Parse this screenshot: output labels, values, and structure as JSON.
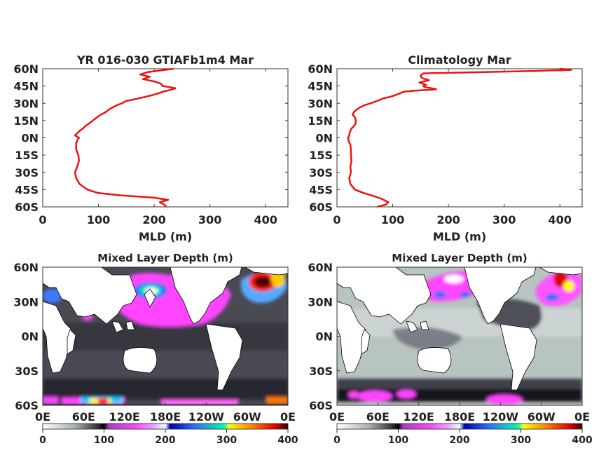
{
  "chart_data": [
    {
      "type": "line",
      "title": "YR 016-030 GTIAFb1m4 Mar",
      "xlabel": "MLD (m)",
      "ylabel": "",
      "xlim": [
        0,
        440
      ],
      "ylim": [
        -60,
        60
      ],
      "x_ticks": [
        "0",
        "100",
        "200",
        "300",
        "400"
      ],
      "y_ticks": [
        "60N",
        "45N",
        "30N",
        "15N",
        "0N",
        "15S",
        "30S",
        "45S",
        "60S"
      ],
      "series_color": "#ee1111",
      "series": [
        {
          "lat": [
            60,
            57,
            55,
            53,
            51,
            49,
            47,
            45,
            44,
            43,
            42,
            41,
            40,
            38,
            36,
            34,
            32,
            30,
            28,
            25,
            22,
            20,
            18,
            15,
            12,
            10,
            8,
            6,
            4,
            2,
            0,
            -2,
            -5,
            -10,
            -15,
            -20,
            -25,
            -30,
            -35,
            -40,
            -45,
            -48,
            -50,
            -52,
            -54,
            -56,
            -58,
            -60
          ],
          "mld": [
            235,
            188,
            175,
            192,
            180,
            200,
            212,
            215,
            228,
            238,
            232,
            224,
            216,
            204,
            188,
            170,
            150,
            142,
            132,
            120,
            112,
            104,
            98,
            90,
            82,
            76,
            72,
            66,
            62,
            58,
            65,
            62,
            60,
            60,
            64,
            65,
            62,
            58,
            60,
            66,
            80,
            100,
            140,
            200,
            225,
            210,
            218,
            222
          ]
        }
      ]
    },
    {
      "type": "line",
      "title": "Climatology Mar",
      "xlabel": "MLD (m)",
      "ylabel": "",
      "xlim": [
        0,
        440
      ],
      "ylim": [
        -60,
        60
      ],
      "x_ticks": [
        "0",
        "100",
        "200",
        "300",
        "400"
      ],
      "y_ticks": [
        "60N",
        "45N",
        "30N",
        "15N",
        "0N",
        "15S",
        "30S",
        "45S",
        "60S"
      ],
      "series_color": "#ee1111",
      "series": [
        {
          "lat": [
            60,
            59,
            58,
            56,
            54,
            52,
            50,
            48,
            46,
            45,
            44,
            43,
            42,
            41,
            40,
            38,
            36,
            34,
            32,
            30,
            28,
            26,
            24,
            22,
            20,
            18,
            15,
            12,
            10,
            8,
            5,
            2,
            0,
            -3,
            -6,
            -10,
            -15,
            -20,
            -25,
            -30,
            -35,
            -40,
            -45,
            -48,
            -50,
            -53,
            -56,
            -58,
            -60
          ],
          "mld": [
            400,
            420,
            350,
            155,
            150,
            152,
            165,
            148,
            160,
            155,
            158,
            170,
            178,
            140,
            120,
            110,
            98,
            82,
            72,
            60,
            48,
            40,
            34,
            30,
            28,
            32,
            34,
            33,
            30,
            26,
            23,
            22,
            20,
            21,
            24,
            25,
            25,
            26,
            24,
            25,
            22,
            24,
            32,
            48,
            62,
            80,
            92,
            88,
            72
          ]
        }
      ]
    },
    {
      "type": "heatmap",
      "title": "Mixed Layer Depth (m)",
      "x_ticks": [
        "0E",
        "60E",
        "120E",
        "180E",
        "120W",
        "60W",
        "0E"
      ],
      "y_ticks": [
        "60N",
        "30N",
        "0N",
        "30S",
        "60S"
      ],
      "colorbar_ticks": [
        "0",
        "100",
        "200",
        "300",
        "400"
      ],
      "colorbar_range": [
        0,
        400
      ],
      "colorbar_colors": [
        "#ffffff",
        "#a8b4b2",
        "#3a3a44",
        "#000000",
        "#b03ac8",
        "#ff44ff",
        "#e8a0ff",
        "#e8ffff",
        "#0000aa",
        "#2a70ff",
        "#00ffaa",
        "#ffff00",
        "#ff7700",
        "#dd0000",
        "#330000"
      ],
      "ocean_color": "#4a4a55"
    },
    {
      "type": "heatmap",
      "title": "Mixed Layer Depth (m)",
      "x_ticks": [
        "0E",
        "60E",
        "120E",
        "180E",
        "120W",
        "60W",
        "0E"
      ],
      "y_ticks": [
        "60N",
        "30N",
        "0N",
        "30S",
        "60S"
      ],
      "colorbar_ticks": [
        "0",
        "100",
        "200",
        "300",
        "400"
      ],
      "colorbar_range": [
        0,
        400
      ],
      "colorbar_colors": [
        "#ffffff",
        "#a8b4b2",
        "#3a3a44",
        "#000000",
        "#b03ac8",
        "#ff44ff",
        "#e8a0ff",
        "#e8ffff",
        "#0000aa",
        "#2a70ff",
        "#00ffaa",
        "#ffff00",
        "#ff7700",
        "#dd0000",
        "#330000"
      ],
      "ocean_color": "#b8c4c2"
    }
  ]
}
